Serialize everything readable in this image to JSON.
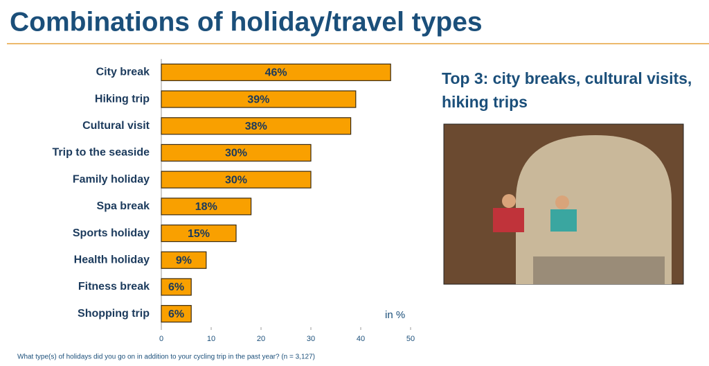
{
  "chart_data": {
    "type": "bar",
    "title": "Combinations of holiday/travel types",
    "categories": [
      "City break",
      "Hiking trip",
      "Cultural visit",
      "Trip to the seaside",
      "Family holiday",
      "Spa break",
      "Sports holiday",
      "Health holiday",
      "Fitness break",
      "Shopping trip"
    ],
    "values": [
      46,
      39,
      38,
      30,
      30,
      18,
      15,
      9,
      6,
      6
    ],
    "value_labels": [
      "46%",
      "39%",
      "38%",
      "30%",
      "30%",
      "18%",
      "15%",
      "9%",
      "6%",
      "6%"
    ],
    "color": "#f9a000",
    "xlim": [
      0,
      50
    ],
    "xticks": [
      0,
      10,
      20,
      30,
      40,
      50
    ],
    "unit_note": "in %",
    "footnote": "What type(s) of holidays did you go on in addition to your cycling trip in the past year? (n = 3,127)"
  },
  "side_panel": {
    "heading": "Top 3: city breaks, cultural visits, hiking trips"
  }
}
